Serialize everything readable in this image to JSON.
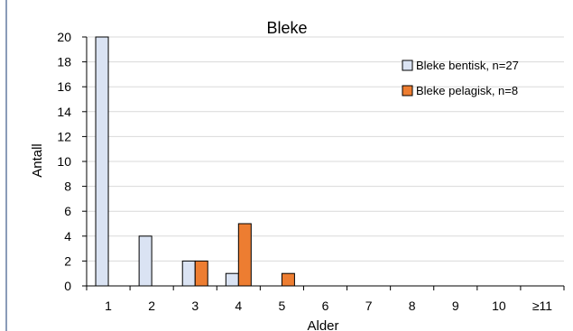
{
  "chart_data": {
    "type": "bar",
    "title": "Bleke",
    "xlabel": "Alder",
    "ylabel": "Antall",
    "categories": [
      "1",
      "2",
      "3",
      "4",
      "5",
      "6",
      "7",
      "8",
      "9",
      "10",
      "≥11"
    ],
    "ylim": [
      0,
      20
    ],
    "yticks": [
      0,
      2,
      4,
      6,
      8,
      10,
      12,
      14,
      16,
      18,
      20
    ],
    "grid": true,
    "legend_position": "top-right",
    "series": [
      {
        "name": "Bleke bentisk, n=27",
        "color": "#dae3f3",
        "values": [
          20,
          4,
          2,
          1,
          0,
          0,
          0,
          0,
          0,
          0,
          0
        ]
      },
      {
        "name": "Bleke pelagisk, n=8",
        "color": "#ed7d31",
        "values": [
          0,
          0,
          2,
          5,
          1,
          0,
          0,
          0,
          0,
          0,
          0
        ]
      }
    ]
  }
}
